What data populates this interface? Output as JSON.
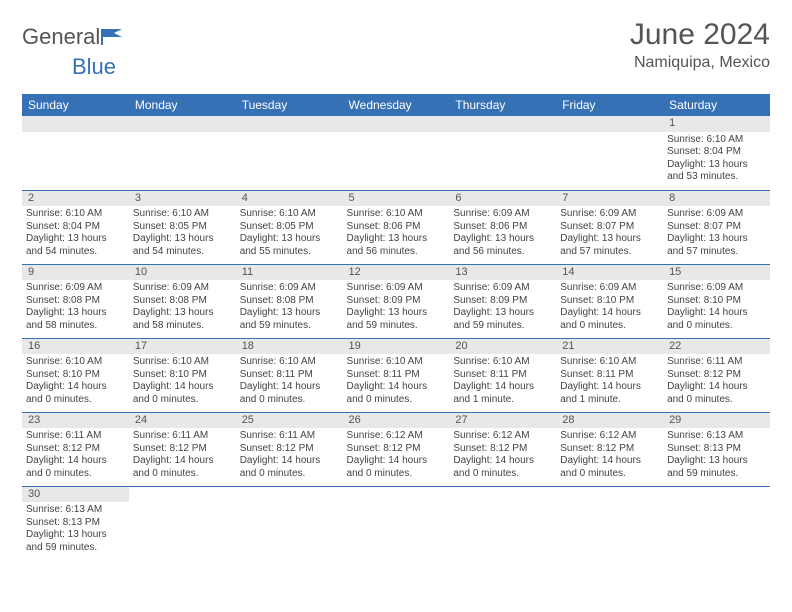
{
  "logo": {
    "text1": "General",
    "text2": "Blue"
  },
  "title": "June 2024",
  "location": "Namiquipa, Mexico",
  "colors": {
    "header_bg": "#3670b5",
    "header_text": "#ffffff",
    "daynum_bg": "#e8e8e8",
    "border": "#3670b5",
    "body_text": "#444444",
    "title_text": "#555555"
  },
  "weekdays": [
    "Sunday",
    "Monday",
    "Tuesday",
    "Wednesday",
    "Thursday",
    "Friday",
    "Saturday"
  ],
  "weeks": [
    [
      null,
      null,
      null,
      null,
      null,
      null,
      {
        "n": "1",
        "sr": "Sunrise: 6:10 AM",
        "ss": "Sunset: 8:04 PM",
        "dl": "Daylight: 13 hours and 53 minutes."
      }
    ],
    [
      {
        "n": "2",
        "sr": "Sunrise: 6:10 AM",
        "ss": "Sunset: 8:04 PM",
        "dl": "Daylight: 13 hours and 54 minutes."
      },
      {
        "n": "3",
        "sr": "Sunrise: 6:10 AM",
        "ss": "Sunset: 8:05 PM",
        "dl": "Daylight: 13 hours and 54 minutes."
      },
      {
        "n": "4",
        "sr": "Sunrise: 6:10 AM",
        "ss": "Sunset: 8:05 PM",
        "dl": "Daylight: 13 hours and 55 minutes."
      },
      {
        "n": "5",
        "sr": "Sunrise: 6:10 AM",
        "ss": "Sunset: 8:06 PM",
        "dl": "Daylight: 13 hours and 56 minutes."
      },
      {
        "n": "6",
        "sr": "Sunrise: 6:09 AM",
        "ss": "Sunset: 8:06 PM",
        "dl": "Daylight: 13 hours and 56 minutes."
      },
      {
        "n": "7",
        "sr": "Sunrise: 6:09 AM",
        "ss": "Sunset: 8:07 PM",
        "dl": "Daylight: 13 hours and 57 minutes."
      },
      {
        "n": "8",
        "sr": "Sunrise: 6:09 AM",
        "ss": "Sunset: 8:07 PM",
        "dl": "Daylight: 13 hours and 57 minutes."
      }
    ],
    [
      {
        "n": "9",
        "sr": "Sunrise: 6:09 AM",
        "ss": "Sunset: 8:08 PM",
        "dl": "Daylight: 13 hours and 58 minutes."
      },
      {
        "n": "10",
        "sr": "Sunrise: 6:09 AM",
        "ss": "Sunset: 8:08 PM",
        "dl": "Daylight: 13 hours and 58 minutes."
      },
      {
        "n": "11",
        "sr": "Sunrise: 6:09 AM",
        "ss": "Sunset: 8:08 PM",
        "dl": "Daylight: 13 hours and 59 minutes."
      },
      {
        "n": "12",
        "sr": "Sunrise: 6:09 AM",
        "ss": "Sunset: 8:09 PM",
        "dl": "Daylight: 13 hours and 59 minutes."
      },
      {
        "n": "13",
        "sr": "Sunrise: 6:09 AM",
        "ss": "Sunset: 8:09 PM",
        "dl": "Daylight: 13 hours and 59 minutes."
      },
      {
        "n": "14",
        "sr": "Sunrise: 6:09 AM",
        "ss": "Sunset: 8:10 PM",
        "dl": "Daylight: 14 hours and 0 minutes."
      },
      {
        "n": "15",
        "sr": "Sunrise: 6:09 AM",
        "ss": "Sunset: 8:10 PM",
        "dl": "Daylight: 14 hours and 0 minutes."
      }
    ],
    [
      {
        "n": "16",
        "sr": "Sunrise: 6:10 AM",
        "ss": "Sunset: 8:10 PM",
        "dl": "Daylight: 14 hours and 0 minutes."
      },
      {
        "n": "17",
        "sr": "Sunrise: 6:10 AM",
        "ss": "Sunset: 8:10 PM",
        "dl": "Daylight: 14 hours and 0 minutes."
      },
      {
        "n": "18",
        "sr": "Sunrise: 6:10 AM",
        "ss": "Sunset: 8:11 PM",
        "dl": "Daylight: 14 hours and 0 minutes."
      },
      {
        "n": "19",
        "sr": "Sunrise: 6:10 AM",
        "ss": "Sunset: 8:11 PM",
        "dl": "Daylight: 14 hours and 0 minutes."
      },
      {
        "n": "20",
        "sr": "Sunrise: 6:10 AM",
        "ss": "Sunset: 8:11 PM",
        "dl": "Daylight: 14 hours and 1 minute."
      },
      {
        "n": "21",
        "sr": "Sunrise: 6:10 AM",
        "ss": "Sunset: 8:11 PM",
        "dl": "Daylight: 14 hours and 1 minute."
      },
      {
        "n": "22",
        "sr": "Sunrise: 6:11 AM",
        "ss": "Sunset: 8:12 PM",
        "dl": "Daylight: 14 hours and 0 minutes."
      }
    ],
    [
      {
        "n": "23",
        "sr": "Sunrise: 6:11 AM",
        "ss": "Sunset: 8:12 PM",
        "dl": "Daylight: 14 hours and 0 minutes."
      },
      {
        "n": "24",
        "sr": "Sunrise: 6:11 AM",
        "ss": "Sunset: 8:12 PM",
        "dl": "Daylight: 14 hours and 0 minutes."
      },
      {
        "n": "25",
        "sr": "Sunrise: 6:11 AM",
        "ss": "Sunset: 8:12 PM",
        "dl": "Daylight: 14 hours and 0 minutes."
      },
      {
        "n": "26",
        "sr": "Sunrise: 6:12 AM",
        "ss": "Sunset: 8:12 PM",
        "dl": "Daylight: 14 hours and 0 minutes."
      },
      {
        "n": "27",
        "sr": "Sunrise: 6:12 AM",
        "ss": "Sunset: 8:12 PM",
        "dl": "Daylight: 14 hours and 0 minutes."
      },
      {
        "n": "28",
        "sr": "Sunrise: 6:12 AM",
        "ss": "Sunset: 8:12 PM",
        "dl": "Daylight: 14 hours and 0 minutes."
      },
      {
        "n": "29",
        "sr": "Sunrise: 6:13 AM",
        "ss": "Sunset: 8:13 PM",
        "dl": "Daylight: 13 hours and 59 minutes."
      }
    ],
    [
      {
        "n": "30",
        "sr": "Sunrise: 6:13 AM",
        "ss": "Sunset: 8:13 PM",
        "dl": "Daylight: 13 hours and 59 minutes."
      },
      null,
      null,
      null,
      null,
      null,
      null
    ]
  ]
}
